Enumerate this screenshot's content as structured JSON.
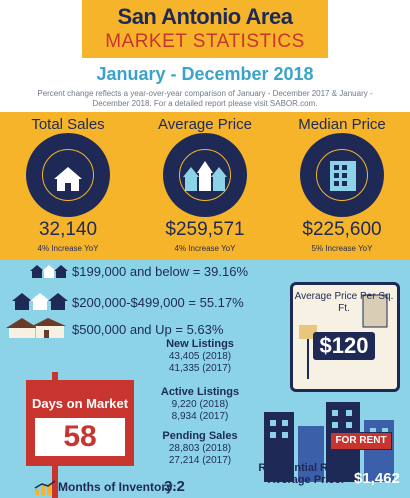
{
  "header": {
    "title_line1": "San Antonio Area",
    "title_line2": "MARKET STATISTICS",
    "date_range": "January - December 2018",
    "disclaimer": "Percent change reflects a year-over-year comparison of January - December 2017 & January - December  2018. For a detailed report please visit SABOR.com."
  },
  "stats": [
    {
      "title": "Total Sales",
      "value": "32,140",
      "change": "4% Increase YoY",
      "icon": "house-icon"
    },
    {
      "title": "Average Price",
      "value": "$259,571",
      "change": "4% Increase YoY",
      "icon": "neighborhood-icon"
    },
    {
      "title": "Median Price",
      "value": "$225,600",
      "change": "5% Increase YoY",
      "icon": "building-icon"
    }
  ],
  "price_tiers": [
    {
      "text": "$199,000 and below = 39.16%",
      "icon": "small-houses-icon"
    },
    {
      "text": "$200,000-$499,000 = 55.17%",
      "icon": "medium-houses-icon"
    },
    {
      "text": "$500,000 and Up = 5.63%",
      "icon": "large-house-icon"
    }
  ],
  "price_per_sqft": {
    "label": "Average Price Per Sq. Ft.",
    "value": "$120"
  },
  "listings": [
    {
      "title": "New Listings",
      "line1": "43,405 (2018)",
      "line2": "41,335 (2017)"
    },
    {
      "title": "Active Listings",
      "line1": "9,220 (2018)",
      "line2": "8,934 (2017)"
    },
    {
      "title": "Pending Sales",
      "line1": "28,803 (2018)",
      "line2": "27,214 (2017)"
    }
  ],
  "days_on_market": {
    "label": "Days on Market",
    "value": "58"
  },
  "months_inventory": {
    "label": "Months of Inventory:",
    "value": "3.2"
  },
  "rental": {
    "label": "Residential Rental Average Price:",
    "value": "$1,462",
    "sign": "FOR RENT"
  },
  "colors": {
    "navy": "#1e2a55",
    "gold": "#f6b42a",
    "red": "#c8352f",
    "sky": "#8dd3e8",
    "teal": "#3ba3c9"
  }
}
